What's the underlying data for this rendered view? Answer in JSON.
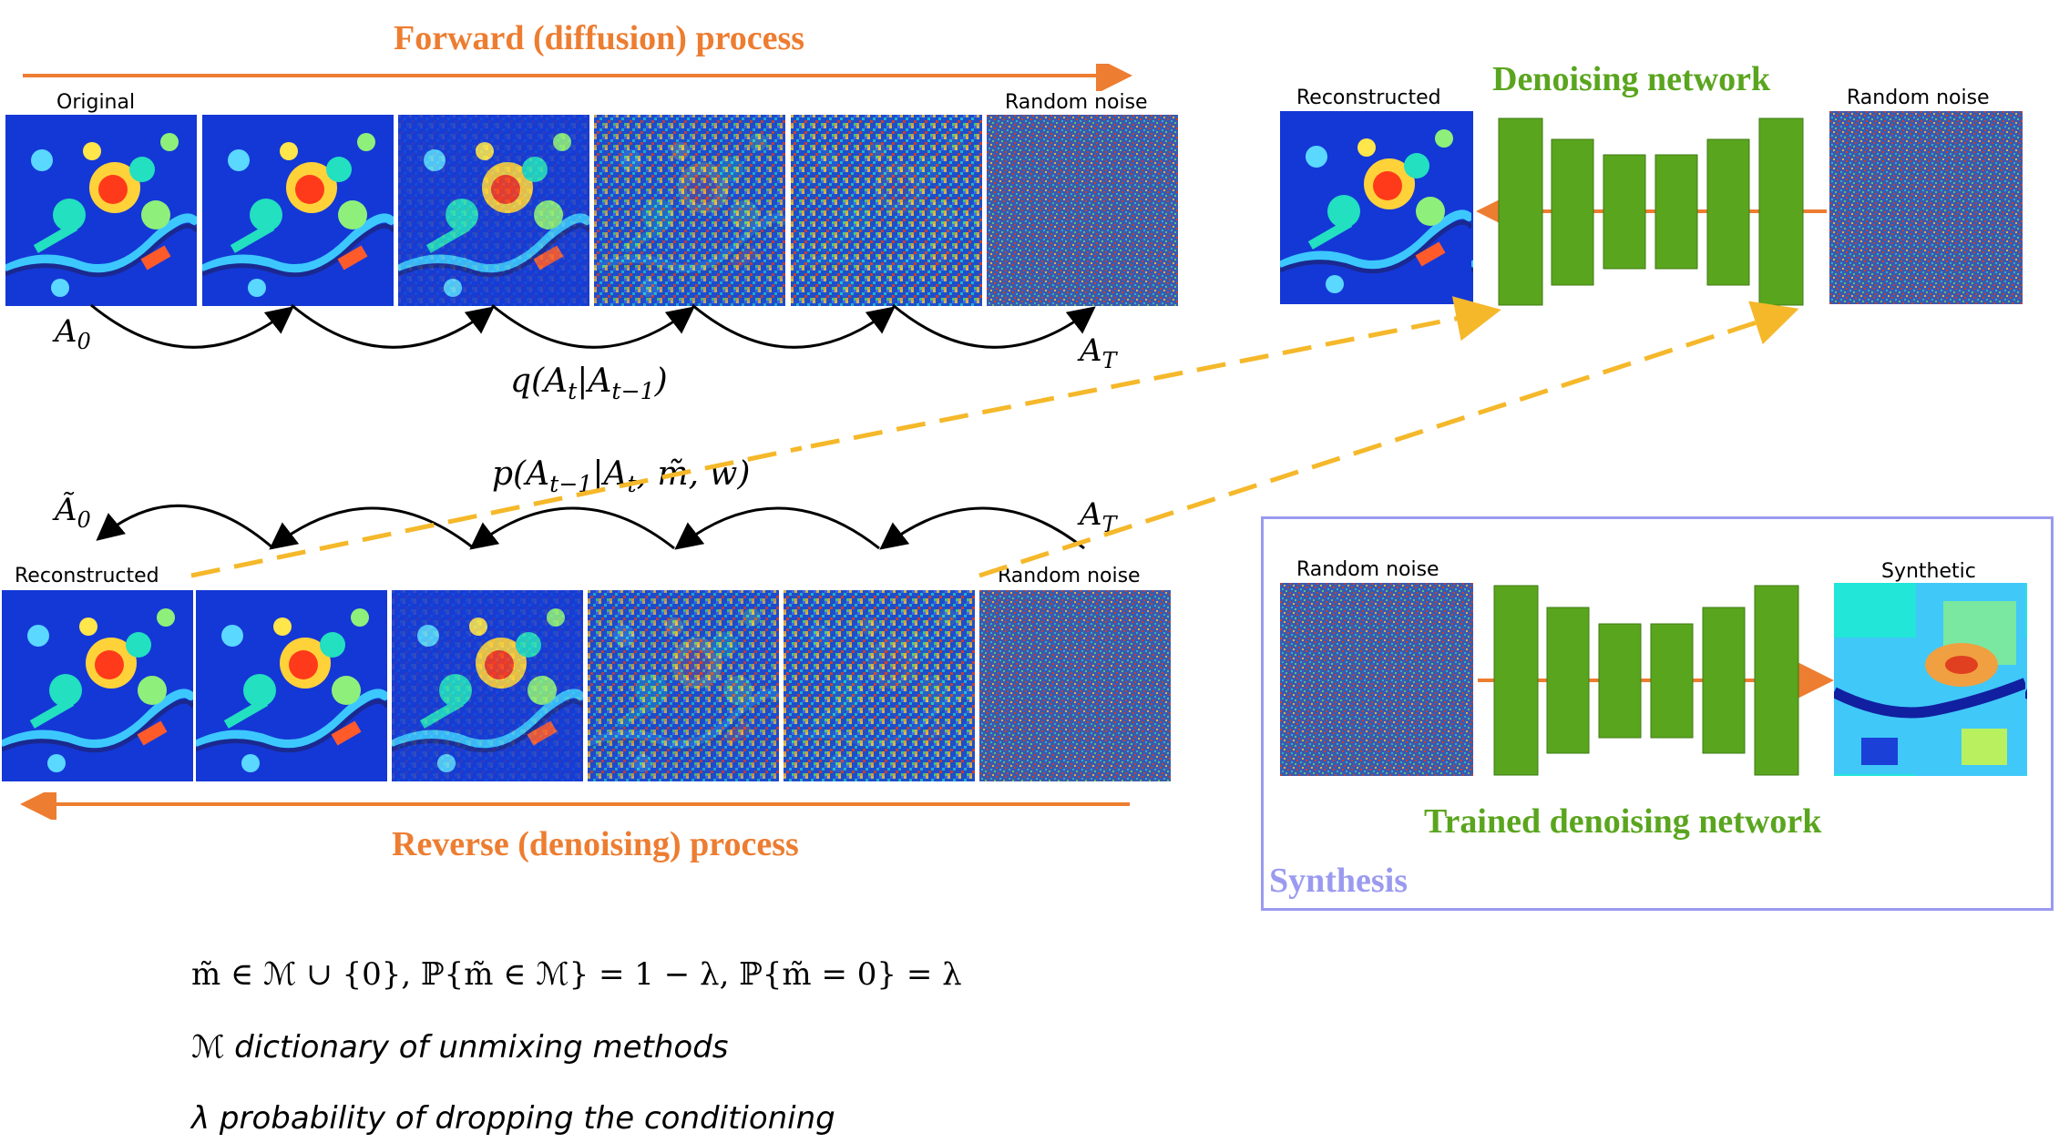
{
  "forward": {
    "title": "Forward (diffusion) process",
    "label_original": "Original",
    "label_random_noise": "Random noise",
    "a0": "A",
    "a0_sub": "0",
    "at": "A",
    "at_sub": "T",
    "transition": "q(A",
    "transition_sub1": "t",
    "transition_mid": "|A",
    "transition_sub2": "t−1",
    "transition_end": ")"
  },
  "reverse": {
    "title": "Reverse (denoising) process",
    "label_reconstructed": "Reconstructed",
    "label_random_noise": "Random noise",
    "a0": "Ã",
    "a0_sub": "0",
    "at": "A",
    "at_sub": "T",
    "transition": "p(A",
    "transition_sub1": "t−1",
    "transition_mid": "|A",
    "transition_sub2": "t",
    "transition_end": ", m̃, w)"
  },
  "denoising": {
    "title": "Denoising network",
    "label_reconstructed": "Reconstructed",
    "label_random_noise": "Random noise"
  },
  "synthesis": {
    "box_title": "Synthesis",
    "network_title": "Trained denoising network",
    "label_random_noise": "Random noise",
    "label_synthetic": "Synthetic"
  },
  "notes": {
    "formula": "m̃  ∈ ℳ ∪ {0},     ℙ{m̃ ∈ ℳ} = 1 − λ, ℙ{m̃ = 0} = λ",
    "dictionary": "ℳ  dictionary of unmixing methods",
    "lambda": "λ probability of dropping the conditioning"
  },
  "colors": {
    "orange": "#ed7d31",
    "green": "#5aa51e",
    "synthesis_border": "#9a9af0",
    "dashed_arrow": "#f5b82a",
    "image_blue": "#1030d0"
  },
  "icons": [
    "satellite-map-image",
    "noise-image",
    "unet-block",
    "curved-arrow"
  ]
}
